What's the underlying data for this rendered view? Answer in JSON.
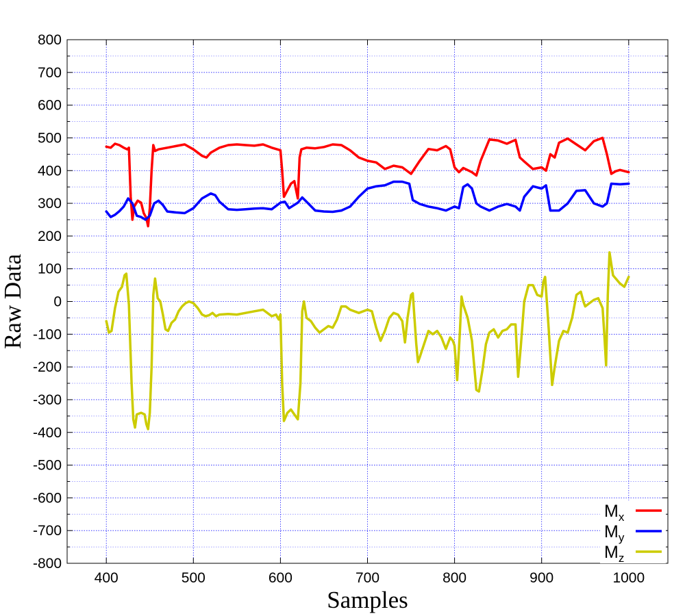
{
  "chart_data": {
    "type": "line",
    "xlabel": "Samples",
    "ylabel": "Raw Data",
    "xlim": [
      355,
      1045
    ],
    "ylim": [
      -800,
      800
    ],
    "x_ticks": [
      400,
      500,
      600,
      700,
      800,
      900,
      1000
    ],
    "y_ticks": [
      -800,
      -700,
      -600,
      -500,
      -400,
      -300,
      -200,
      -100,
      0,
      100,
      200,
      300,
      400,
      500,
      600,
      700,
      800
    ],
    "grid": true,
    "legend_position": "bottom-right",
    "series": [
      {
        "name": "Mx",
        "name_main": "M",
        "name_sub": "x",
        "color": "#ff0000",
        "points": [
          [
            400,
            473
          ],
          [
            405,
            470
          ],
          [
            410,
            482
          ],
          [
            415,
            478
          ],
          [
            420,
            470
          ],
          [
            424,
            465
          ],
          [
            426,
            470
          ],
          [
            428,
            320
          ],
          [
            430,
            250
          ],
          [
            432,
            290
          ],
          [
            436,
            308
          ],
          [
            440,
            302
          ],
          [
            443,
            270
          ],
          [
            446,
            255
          ],
          [
            448,
            230
          ],
          [
            450,
            285
          ],
          [
            452,
            400
          ],
          [
            454,
            478
          ],
          [
            456,
            460
          ],
          [
            460,
            465
          ],
          [
            470,
            470
          ],
          [
            480,
            475
          ],
          [
            490,
            480
          ],
          [
            500,
            465
          ],
          [
            510,
            445
          ],
          [
            515,
            440
          ],
          [
            520,
            455
          ],
          [
            530,
            470
          ],
          [
            540,
            478
          ],
          [
            550,
            480
          ],
          [
            560,
            478
          ],
          [
            570,
            476
          ],
          [
            580,
            480
          ],
          [
            590,
            470
          ],
          [
            600,
            462
          ],
          [
            602,
            400
          ],
          [
            604,
            320
          ],
          [
            608,
            340
          ],
          [
            612,
            360
          ],
          [
            616,
            368
          ],
          [
            618,
            340
          ],
          [
            620,
            315
          ],
          [
            622,
            440
          ],
          [
            624,
            465
          ],
          [
            630,
            470
          ],
          [
            640,
            468
          ],
          [
            650,
            472
          ],
          [
            660,
            480
          ],
          [
            670,
            478
          ],
          [
            680,
            462
          ],
          [
            690,
            440
          ],
          [
            700,
            430
          ],
          [
            710,
            425
          ],
          [
            720,
            405
          ],
          [
            730,
            415
          ],
          [
            740,
            410
          ],
          [
            750,
            390
          ],
          [
            760,
            430
          ],
          [
            770,
            466
          ],
          [
            780,
            462
          ],
          [
            790,
            475
          ],
          [
            795,
            465
          ],
          [
            800,
            410
          ],
          [
            805,
            395
          ],
          [
            810,
            408
          ],
          [
            820,
            395
          ],
          [
            825,
            385
          ],
          [
            830,
            430
          ],
          [
            840,
            495
          ],
          [
            850,
            492
          ],
          [
            860,
            482
          ],
          [
            870,
            494
          ],
          [
            875,
            440
          ],
          [
            880,
            428
          ],
          [
            890,
            405
          ],
          [
            900,
            410
          ],
          [
            905,
            400
          ],
          [
            910,
            450
          ],
          [
            915,
            440
          ],
          [
            920,
            485
          ],
          [
            930,
            498
          ],
          [
            940,
            480
          ],
          [
            950,
            462
          ],
          [
            960,
            490
          ],
          [
            970,
            500
          ],
          [
            975,
            450
          ],
          [
            980,
            390
          ],
          [
            985,
            398
          ],
          [
            990,
            402
          ],
          [
            1000,
            395
          ]
        ]
      },
      {
        "name": "My",
        "name_main": "M",
        "name_sub": "y",
        "color": "#0000ff",
        "points": [
          [
            400,
            275
          ],
          [
            405,
            258
          ],
          [
            410,
            265
          ],
          [
            415,
            276
          ],
          [
            420,
            290
          ],
          [
            425,
            315
          ],
          [
            430,
            300
          ],
          [
            435,
            262
          ],
          [
            440,
            258
          ],
          [
            445,
            250
          ],
          [
            450,
            262
          ],
          [
            455,
            300
          ],
          [
            460,
            308
          ],
          [
            465,
            295
          ],
          [
            470,
            275
          ],
          [
            480,
            272
          ],
          [
            490,
            270
          ],
          [
            500,
            285
          ],
          [
            510,
            315
          ],
          [
            520,
            330
          ],
          [
            525,
            325
          ],
          [
            530,
            305
          ],
          [
            540,
            282
          ],
          [
            550,
            280
          ],
          [
            560,
            282
          ],
          [
            570,
            284
          ],
          [
            580,
            285
          ],
          [
            590,
            282
          ],
          [
            600,
            302
          ],
          [
            605,
            305
          ],
          [
            610,
            285
          ],
          [
            620,
            302
          ],
          [
            625,
            318
          ],
          [
            630,
            305
          ],
          [
            640,
            278
          ],
          [
            650,
            275
          ],
          [
            660,
            274
          ],
          [
            670,
            278
          ],
          [
            680,
            290
          ],
          [
            690,
            320
          ],
          [
            700,
            345
          ],
          [
            710,
            352
          ],
          [
            720,
            355
          ],
          [
            730,
            366
          ],
          [
            740,
            366
          ],
          [
            748,
            360
          ],
          [
            752,
            310
          ],
          [
            760,
            298
          ],
          [
            770,
            290
          ],
          [
            780,
            285
          ],
          [
            790,
            278
          ],
          [
            800,
            290
          ],
          [
            805,
            285
          ],
          [
            810,
            350
          ],
          [
            815,
            358
          ],
          [
            820,
            345
          ],
          [
            825,
            300
          ],
          [
            830,
            290
          ],
          [
            840,
            278
          ],
          [
            850,
            290
          ],
          [
            860,
            298
          ],
          [
            870,
            290
          ],
          [
            875,
            278
          ],
          [
            880,
            320
          ],
          [
            890,
            352
          ],
          [
            900,
            345
          ],
          [
            905,
            355
          ],
          [
            910,
            278
          ],
          [
            920,
            278
          ],
          [
            930,
            300
          ],
          [
            940,
            338
          ],
          [
            950,
            340
          ],
          [
            960,
            300
          ],
          [
            970,
            290
          ],
          [
            975,
            300
          ],
          [
            980,
            360
          ],
          [
            990,
            358
          ],
          [
            1000,
            360
          ]
        ]
      },
      {
        "name": "Mz",
        "name_main": "M",
        "name_sub": "z",
        "color": "#cccc00",
        "points": [
          [
            400,
            -60
          ],
          [
            403,
            -95
          ],
          [
            406,
            -90
          ],
          [
            410,
            -20
          ],
          [
            414,
            30
          ],
          [
            418,
            45
          ],
          [
            421,
            80
          ],
          [
            423,
            85
          ],
          [
            426,
            -10
          ],
          [
            429,
            -250
          ],
          [
            431,
            -360
          ],
          [
            433,
            -385
          ],
          [
            435,
            -345
          ],
          [
            440,
            -340
          ],
          [
            444,
            -345
          ],
          [
            446,
            -375
          ],
          [
            448,
            -390
          ],
          [
            450,
            -340
          ],
          [
            452,
            -200
          ],
          [
            454,
            20
          ],
          [
            456,
            70
          ],
          [
            459,
            10
          ],
          [
            462,
            0
          ],
          [
            465,
            -40
          ],
          [
            468,
            -85
          ],
          [
            471,
            -90
          ],
          [
            475,
            -65
          ],
          [
            479,
            -55
          ],
          [
            483,
            -30
          ],
          [
            487,
            -15
          ],
          [
            491,
            -5
          ],
          [
            495,
            0
          ],
          [
            500,
            -5
          ],
          [
            505,
            -20
          ],
          [
            510,
            -40
          ],
          [
            514,
            -45
          ],
          [
            518,
            -42
          ],
          [
            522,
            -35
          ],
          [
            526,
            -45
          ],
          [
            530,
            -40
          ],
          [
            540,
            -38
          ],
          [
            550,
            -40
          ],
          [
            560,
            -35
          ],
          [
            570,
            -30
          ],
          [
            580,
            -25
          ],
          [
            590,
            -45
          ],
          [
            595,
            -40
          ],
          [
            598,
            -55
          ],
          [
            600,
            -40
          ],
          [
            602,
            -250
          ],
          [
            604,
            -365
          ],
          [
            608,
            -340
          ],
          [
            612,
            -330
          ],
          [
            616,
            -345
          ],
          [
            620,
            -360
          ],
          [
            623,
            -250
          ],
          [
            625,
            -30
          ],
          [
            627,
            0
          ],
          [
            630,
            -50
          ],
          [
            635,
            -60
          ],
          [
            640,
            -80
          ],
          [
            645,
            -95
          ],
          [
            650,
            -85
          ],
          [
            655,
            -75
          ],
          [
            660,
            -80
          ],
          [
            665,
            -55
          ],
          [
            670,
            -15
          ],
          [
            675,
            -15
          ],
          [
            680,
            -25
          ],
          [
            690,
            -35
          ],
          [
            700,
            -25
          ],
          [
            705,
            -30
          ],
          [
            710,
            -80
          ],
          [
            715,
            -120
          ],
          [
            720,
            -90
          ],
          [
            725,
            -50
          ],
          [
            730,
            -35
          ],
          [
            735,
            -40
          ],
          [
            740,
            -60
          ],
          [
            743,
            -125
          ],
          [
            746,
            -50
          ],
          [
            750,
            20
          ],
          [
            752,
            25
          ],
          [
            756,
            -130
          ],
          [
            758,
            -185
          ],
          [
            760,
            -170
          ],
          [
            765,
            -130
          ],
          [
            770,
            -90
          ],
          [
            775,
            -100
          ],
          [
            780,
            -90
          ],
          [
            785,
            -110
          ],
          [
            790,
            -145
          ],
          [
            795,
            -110
          ],
          [
            798,
            -120
          ],
          [
            800,
            -135
          ],
          [
            803,
            -240
          ],
          [
            806,
            -100
          ],
          [
            808,
            15
          ],
          [
            810,
            -10
          ],
          [
            815,
            -50
          ],
          [
            820,
            -120
          ],
          [
            825,
            -270
          ],
          [
            828,
            -275
          ],
          [
            832,
            -210
          ],
          [
            836,
            -130
          ],
          [
            840,
            -95
          ],
          [
            845,
            -85
          ],
          [
            850,
            -110
          ],
          [
            855,
            -90
          ],
          [
            860,
            -85
          ],
          [
            865,
            -70
          ],
          [
            870,
            -70
          ],
          [
            873,
            -230
          ],
          [
            876,
            -140
          ],
          [
            880,
            0
          ],
          [
            885,
            50
          ],
          [
            890,
            50
          ],
          [
            895,
            20
          ],
          [
            900,
            15
          ],
          [
            902,
            60
          ],
          [
            904,
            75
          ],
          [
            906,
            0
          ],
          [
            908,
            -80
          ],
          [
            912,
            -255
          ],
          [
            915,
            -200
          ],
          [
            920,
            -120
          ],
          [
            925,
            -90
          ],
          [
            930,
            -95
          ],
          [
            935,
            -50
          ],
          [
            940,
            20
          ],
          [
            945,
            30
          ],
          [
            948,
            0
          ],
          [
            950,
            -15
          ],
          [
            955,
            -5
          ],
          [
            960,
            5
          ],
          [
            965,
            10
          ],
          [
            970,
            -20
          ],
          [
            972,
            -100
          ],
          [
            974,
            -195
          ],
          [
            976,
            20
          ],
          [
            978,
            150
          ],
          [
            982,
            80
          ],
          [
            990,
            55
          ],
          [
            995,
            45
          ],
          [
            1000,
            75
          ]
        ]
      }
    ]
  }
}
